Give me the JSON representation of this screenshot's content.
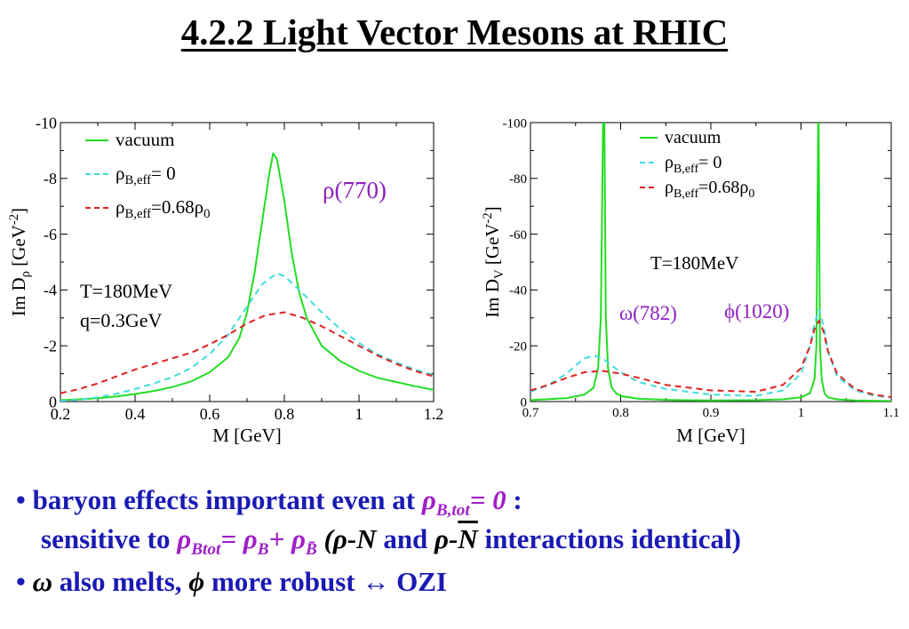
{
  "title": "4.2.2  Light Vector Mesons at RHIC",
  "colors": {
    "vacuum": "#22dd22",
    "rho0": "#40dcdc",
    "rho068": "#e02020",
    "purple": "#9020c0",
    "bullet": "#1a1ab4"
  },
  "bullets": {
    "b1": {
      "dot": "•",
      "text": "baryon effects important even at ",
      "sym": "ρ",
      "sub": "B,tot",
      "eq": "= 0",
      "colon": " :"
    },
    "b2": {
      "text1": "sensitive to ",
      "sym1": "ρ",
      "sub1": "Btot",
      "eq1": "= ",
      "sym2": "ρ",
      "sub2": "B",
      "plus": "+ ",
      "sym3": "ρ",
      "sub3": "B̄",
      "paren_open": "  (",
      "sym4": "ρ",
      "dashN": "-N",
      "and": " and ",
      "sym5": "ρ",
      "dash": "-",
      "Nbar": "N",
      "tail": " interactions identical)"
    },
    "b3": {
      "dot": "•",
      "sym1": "ω",
      "text1": " also melts, ",
      "sym2": "ϕ",
      "text2": " more robust ↔ OZI"
    }
  },
  "chart_data": [
    {
      "type": "line",
      "xlabel": "M [GeV]",
      "ylabel_main": "Im D",
      "ylabel_sub": "ρ",
      "ylabel_unit": " [GeV",
      "ylabel_sup": "-2",
      "ylabel_close": "]",
      "xlim": [
        0.2,
        1.2
      ],
      "ylim": [
        0,
        -10
      ],
      "y_inverted": true,
      "xticks": [
        0.2,
        0.4,
        0.6,
        0.8,
        1,
        1.2
      ],
      "xtick_labels": [
        "0.2",
        "0.4",
        "0.6",
        "0.8",
        "1",
        "1.2"
      ],
      "yticks": [
        0,
        -2,
        -4,
        -6,
        -8,
        -10
      ],
      "ytick_labels": [
        "0",
        "-2",
        "-4",
        "-6",
        "-8",
        "-10"
      ],
      "legend": [
        {
          "label_main": "vacuum",
          "label_sub": "",
          "label_rest": "",
          "label_sub2": "",
          "style": "solid",
          "color": "#22dd22"
        },
        {
          "label_main": "ρ",
          "label_sub": "B,eff",
          "label_rest": "= 0",
          "label_sub2": "",
          "style": "dashed",
          "color": "#40dcdc"
        },
        {
          "label_main": "ρ",
          "label_sub": "B,eff",
          "label_rest": "=0.68ρ",
          "label_sub2": "0",
          "style": "dashed",
          "color": "#e02020"
        }
      ],
      "annotations": [
        {
          "text": "ρ(770)",
          "color": "#9020c0"
        },
        {
          "text": "T=180MeV",
          "color": "#000000"
        },
        {
          "text": "q=0.3GeV",
          "color": "#000000"
        }
      ],
      "series": [
        {
          "color": "#22dd22",
          "dash": "",
          "x": [
            0.2,
            0.25,
            0.3,
            0.35,
            0.4,
            0.45,
            0.5,
            0.55,
            0.6,
            0.65,
            0.68,
            0.7,
            0.72,
            0.74,
            0.76,
            0.77,
            0.78,
            0.8,
            0.82,
            0.84,
            0.86,
            0.9,
            0.95,
            1.0,
            1.05,
            1.1,
            1.15,
            1.2
          ],
          "y": [
            -0.05,
            -0.08,
            -0.12,
            -0.18,
            -0.27,
            -0.38,
            -0.52,
            -0.72,
            -1.05,
            -1.6,
            -2.3,
            -3.2,
            -4.6,
            -6.4,
            -8.2,
            -8.9,
            -8.7,
            -7.2,
            -5.3,
            -3.9,
            -3.0,
            -2.0,
            -1.45,
            -1.1,
            -0.85,
            -0.7,
            -0.55,
            -0.42
          ]
        },
        {
          "color": "#40dcdc",
          "dash": "7,5",
          "x": [
            0.2,
            0.25,
            0.3,
            0.35,
            0.4,
            0.45,
            0.5,
            0.55,
            0.6,
            0.65,
            0.7,
            0.74,
            0.78,
            0.8,
            0.84,
            0.9,
            0.95,
            1.0,
            1.05,
            1.1,
            1.15,
            1.2
          ],
          "y": [
            -0.03,
            -0.06,
            -0.15,
            -0.28,
            -0.45,
            -0.65,
            -0.88,
            -1.2,
            -1.7,
            -2.4,
            -3.4,
            -4.2,
            -4.6,
            -4.5,
            -4.0,
            -3.2,
            -2.6,
            -2.1,
            -1.7,
            -1.4,
            -1.15,
            -0.95
          ]
        },
        {
          "color": "#e02020",
          "dash": "7,5",
          "x": [
            0.2,
            0.25,
            0.3,
            0.35,
            0.4,
            0.45,
            0.5,
            0.55,
            0.6,
            0.65,
            0.7,
            0.75,
            0.8,
            0.85,
            0.9,
            0.95,
            1.0,
            1.05,
            1.1,
            1.15,
            1.2
          ],
          "y": [
            -0.3,
            -0.45,
            -0.65,
            -0.9,
            -1.15,
            -1.35,
            -1.55,
            -1.75,
            -2.05,
            -2.4,
            -2.8,
            -3.1,
            -3.2,
            -3.0,
            -2.7,
            -2.35,
            -2.0,
            -1.65,
            -1.35,
            -1.1,
            -0.9
          ]
        }
      ]
    },
    {
      "type": "line",
      "xlabel": "M [GeV]",
      "ylabel_main": "Im D",
      "ylabel_sub": "V",
      "ylabel_unit": " [GeV",
      "ylabel_sup": "-2",
      "ylabel_close": "]",
      "xlim": [
        0.7,
        1.1
      ],
      "ylim": [
        0,
        -100
      ],
      "y_inverted": true,
      "xticks": [
        0.7,
        0.8,
        0.9,
        1.0,
        1.1
      ],
      "xtick_labels": [
        "0.7",
        "0.8",
        "0.9",
        "1",
        "1.1"
      ],
      "yticks": [
        0,
        -20,
        -40,
        -60,
        -80,
        -100
      ],
      "ytick_labels": [
        "0",
        "-20",
        "-40",
        "-60",
        "-80",
        "-100"
      ],
      "legend": [
        {
          "label_main": "vacuum",
          "label_sub": "",
          "label_rest": "",
          "label_sub2": "",
          "style": "solid",
          "color": "#22dd22"
        },
        {
          "label_main": "ρ",
          "label_sub": "B,eff",
          "label_rest": "= 0",
          "label_sub2": "",
          "style": "dashed",
          "color": "#40dcdc"
        },
        {
          "label_main": "ρ",
          "label_sub": "B,eff",
          "label_rest": "=0.68ρ",
          "label_sub2": "0",
          "style": "dashed",
          "color": "#e02020"
        }
      ],
      "annotations": [
        {
          "text": "T=180MeV",
          "color": "#000000"
        },
        {
          "text": "ω(782)",
          "color": "#9020c0"
        },
        {
          "text": "ϕ(1020)",
          "color": "#9020c0"
        }
      ],
      "series": [
        {
          "color": "#22dd22",
          "dash": "",
          "x": [
            0.7,
            0.74,
            0.76,
            0.77,
            0.775,
            0.778,
            0.7805,
            0.782,
            0.7835,
            0.786,
            0.79,
            0.795,
            0.8,
            0.82,
            0.86,
            0.9,
            0.95,
            0.98,
            1.0,
            1.01,
            1.015,
            1.017,
            1.019,
            1.0195,
            1.021,
            1.023,
            1.026,
            1.03,
            1.04,
            1.06,
            1.1
          ],
          "y": [
            -0.5,
            -1.2,
            -2.5,
            -5,
            -12,
            -30,
            -100,
            -100,
            -30,
            -12,
            -5,
            -3,
            -2,
            -1,
            -0.5,
            -0.4,
            -0.5,
            -0.8,
            -1.5,
            -3,
            -8,
            -20,
            -100,
            -100,
            -20,
            -8,
            -3,
            -1.5,
            -0.8,
            -0.4,
            -0.2
          ]
        },
        {
          "color": "#40dcdc",
          "dash": "7,5",
          "x": [
            0.7,
            0.72,
            0.74,
            0.75,
            0.76,
            0.77,
            0.78,
            0.79,
            0.8,
            0.82,
            0.85,
            0.9,
            0.95,
            0.98,
            1.0,
            1.01,
            1.015,
            1.02,
            1.025,
            1.03,
            1.04,
            1.06,
            1.08,
            1.1
          ],
          "y": [
            -3.5,
            -6,
            -10,
            -13,
            -15.5,
            -16.5,
            -15.5,
            -13,
            -10.5,
            -7,
            -4.5,
            -2.5,
            -2,
            -4,
            -10,
            -20,
            -28,
            -33,
            -27,
            -18,
            -9,
            -4,
            -2.2,
            -1.5
          ]
        },
        {
          "color": "#e02020",
          "dash": "7,5",
          "x": [
            0.7,
            0.72,
            0.74,
            0.76,
            0.78,
            0.8,
            0.82,
            0.85,
            0.9,
            0.95,
            0.98,
            1.0,
            1.01,
            1.015,
            1.02,
            1.025,
            1.03,
            1.04,
            1.06,
            1.08,
            1.1
          ],
          "y": [
            -4,
            -6,
            -8.5,
            -10.5,
            -11,
            -10,
            -8.5,
            -6,
            -4,
            -3.5,
            -6,
            -12,
            -20,
            -26,
            -29,
            -25,
            -18,
            -10,
            -4.5,
            -2.5,
            -1.6
          ]
        }
      ]
    }
  ]
}
